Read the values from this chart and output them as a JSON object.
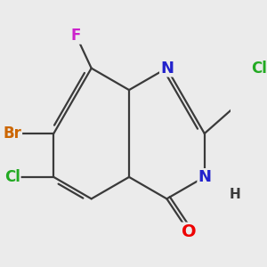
{
  "bg_color": "#ebebeb",
  "bond_color": "#3a3a3a",
  "bond_width": 1.6,
  "atom_colors": {
    "O": "#ee0000",
    "N": "#2222cc",
    "Cl": "#22aa22",
    "Br": "#cc6600",
    "F": "#cc22cc",
    "H": "#3a3a3a",
    "C": "#3a3a3a"
  },
  "font_size": 13
}
